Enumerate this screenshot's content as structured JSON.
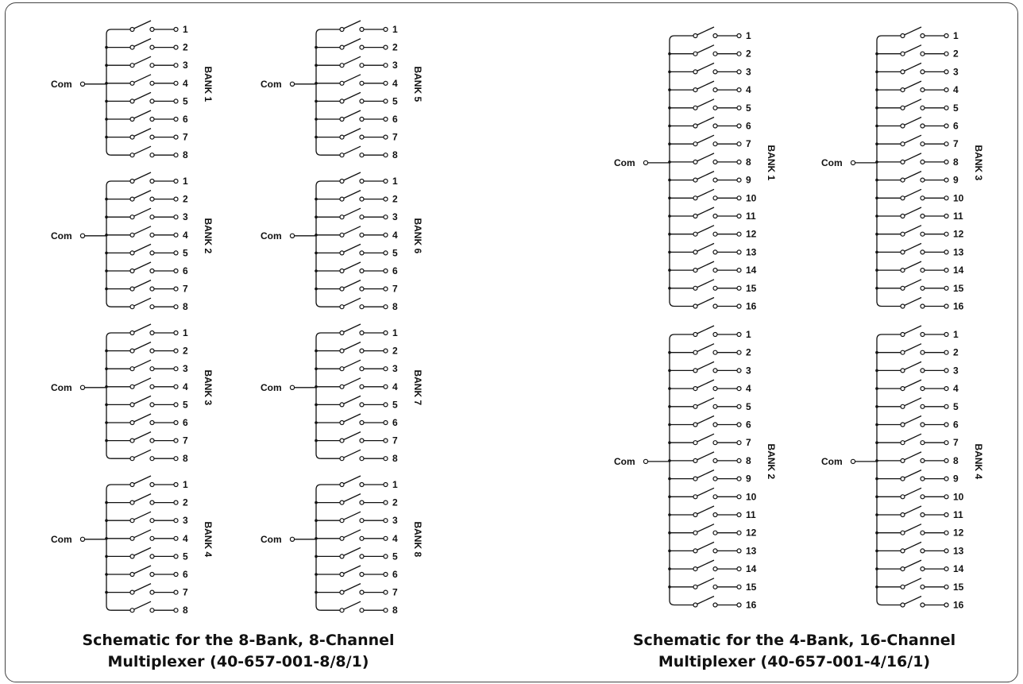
{
  "left_diagram": {
    "caption_line1": "Schematic for the 8-Bank, 8-Channel",
    "caption_line2": "Multiplexer (40-657-001-8/8/1)",
    "common_label": "Com",
    "banks": [
      {
        "label": "BANK 1",
        "channels": [
          "1",
          "2",
          "3",
          "4",
          "5",
          "6",
          "7",
          "8"
        ]
      },
      {
        "label": "BANK 2",
        "channels": [
          "1",
          "2",
          "3",
          "4",
          "5",
          "6",
          "7",
          "8"
        ]
      },
      {
        "label": "BANK 3",
        "channels": [
          "1",
          "2",
          "3",
          "4",
          "5",
          "6",
          "7",
          "8"
        ]
      },
      {
        "label": "BANK 4",
        "channels": [
          "1",
          "2",
          "3",
          "4",
          "5",
          "6",
          "7",
          "8"
        ]
      },
      {
        "label": "BANK 5",
        "channels": [
          "1",
          "2",
          "3",
          "4",
          "5",
          "6",
          "7",
          "8"
        ]
      },
      {
        "label": "BANK 6",
        "channels": [
          "1",
          "2",
          "3",
          "4",
          "5",
          "6",
          "7",
          "8"
        ]
      },
      {
        "label": "BANK 7",
        "channels": [
          "1",
          "2",
          "3",
          "4",
          "5",
          "6",
          "7",
          "8"
        ]
      },
      {
        "label": "BANK 8",
        "channels": [
          "1",
          "2",
          "3",
          "4",
          "5",
          "6",
          "7",
          "8"
        ]
      }
    ]
  },
  "right_diagram": {
    "caption_line1": "Schematic for the 4-Bank, 16-Channel",
    "caption_line2": "Multiplexer (40-657-001-4/16/1)",
    "common_label": "Com",
    "banks": [
      {
        "label": "BANK 1",
        "channels": [
          "1",
          "2",
          "3",
          "4",
          "5",
          "6",
          "7",
          "8",
          "9",
          "10",
          "11",
          "12",
          "13",
          "14",
          "15",
          "16"
        ]
      },
      {
        "label": "BANK 2",
        "channels": [
          "1",
          "2",
          "3",
          "4",
          "5",
          "6",
          "7",
          "8",
          "9",
          "10",
          "11",
          "12",
          "13",
          "14",
          "15",
          "16"
        ]
      },
      {
        "label": "BANK 3",
        "channels": [
          "1",
          "2",
          "3",
          "4",
          "5",
          "6",
          "7",
          "8",
          "9",
          "10",
          "11",
          "12",
          "13",
          "14",
          "15",
          "16"
        ]
      },
      {
        "label": "BANK 4",
        "channels": [
          "1",
          "2",
          "3",
          "4",
          "5",
          "6",
          "7",
          "8",
          "9",
          "10",
          "11",
          "12",
          "13",
          "14",
          "15",
          "16"
        ]
      }
    ]
  }
}
